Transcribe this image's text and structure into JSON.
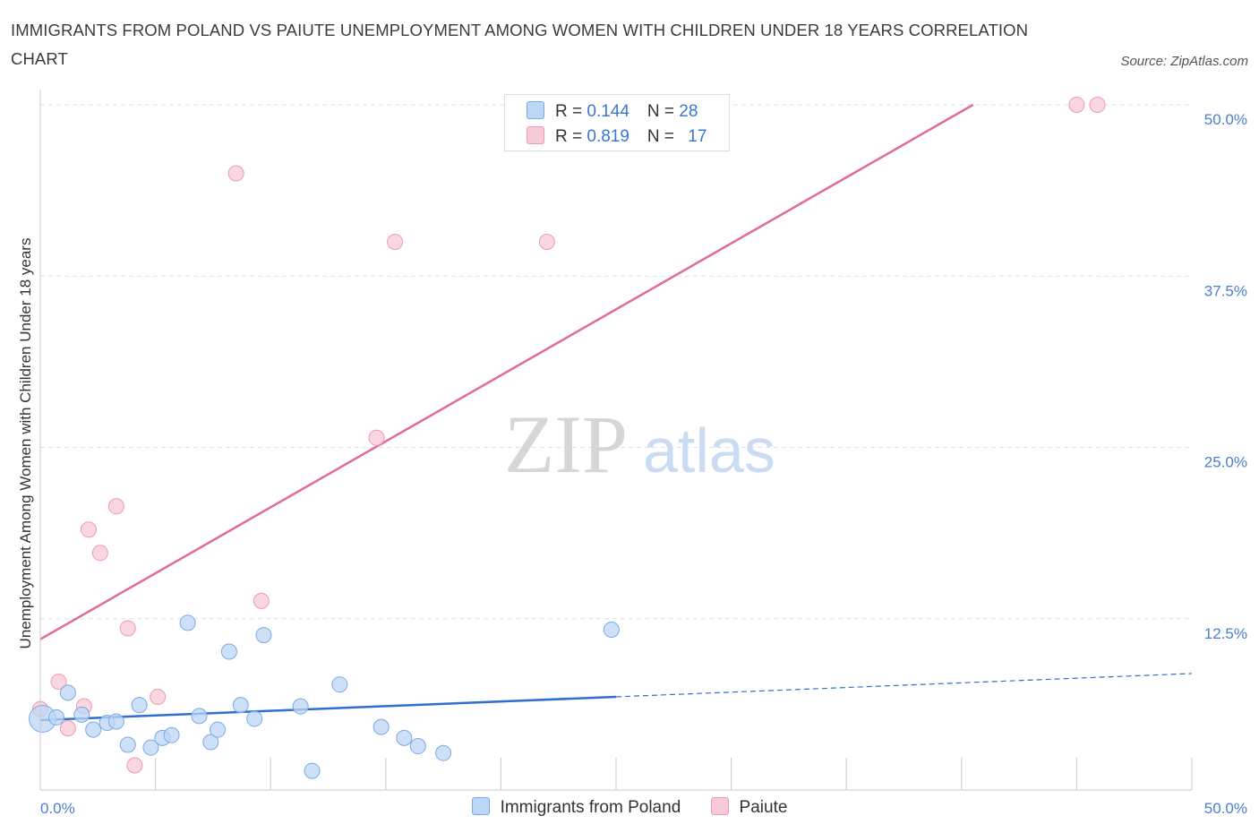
{
  "title": "IMMIGRANTS FROM POLAND VS PAIUTE UNEMPLOYMENT AMONG WOMEN WITH CHILDREN UNDER 18 YEARS CORRELATION CHART",
  "source": "Source: ZipAtlas.com",
  "watermark": {
    "zip": "ZIP",
    "atlas": "atlas"
  },
  "colors": {
    "poland_fill": "#bcd6f5",
    "poland_stroke": "#7aaae6",
    "poland_line": "#2f6fcf",
    "paiute_fill": "#f8c9d6",
    "paiute_stroke": "#ec9ab2",
    "paiute_line": "#e06b93",
    "grid": "#dde0e6",
    "tick_text": "#4a7fcf"
  },
  "legend": {
    "poland": {
      "r_label": "R = ",
      "r_value": "0.144",
      "n_label": "N = ",
      "n_value": "28"
    },
    "paiute": {
      "r_label": "R = ",
      "r_value": "0.819",
      "n_label": "N = ",
      "n_value": "17"
    }
  },
  "chart_data": {
    "type": "scatter",
    "title": "IMMIGRANTS FROM POLAND VS PAIUTE UNEMPLOYMENT AMONG WOMEN WITH CHILDREN UNDER 18 YEARS CORRELATION CHART",
    "xlabel": "",
    "ylabel": "Unemployment Among Women with Children Under 18 years",
    "xlim": [
      0,
      50
    ],
    "ylim": [
      0,
      50
    ],
    "x_tick_labels": [
      "0.0%",
      "50.0%"
    ],
    "y_ticks": [
      12.5,
      25.0,
      37.5,
      50.0
    ],
    "y_tick_labels": [
      "12.5%",
      "25.0%",
      "37.5%",
      "50.0%"
    ],
    "grid": true,
    "legend_position": "top-center",
    "series": [
      {
        "name": "Immigrants from Poland",
        "points": [
          [
            0.1,
            5.2
          ],
          [
            0.7,
            5.3
          ],
          [
            1.2,
            7.1
          ],
          [
            1.8,
            5.5
          ],
          [
            2.3,
            4.4
          ],
          [
            2.9,
            4.9
          ],
          [
            3.3,
            5.0
          ],
          [
            3.8,
            3.3
          ],
          [
            4.3,
            6.2
          ],
          [
            4.8,
            3.1
          ],
          [
            5.3,
            3.8
          ],
          [
            5.7,
            4.0
          ],
          [
            6.4,
            12.2
          ],
          [
            6.9,
            5.4
          ],
          [
            7.4,
            3.5
          ],
          [
            7.7,
            4.4
          ],
          [
            8.2,
            10.1
          ],
          [
            8.7,
            6.2
          ],
          [
            9.3,
            5.2
          ],
          [
            9.7,
            11.3
          ],
          [
            11.3,
            6.1
          ],
          [
            11.8,
            1.4
          ],
          [
            13.0,
            7.7
          ],
          [
            14.8,
            4.6
          ],
          [
            15.8,
            3.8
          ],
          [
            16.4,
            3.2
          ],
          [
            17.5,
            2.7
          ],
          [
            24.8,
            11.7
          ]
        ],
        "trend": {
          "x": [
            0,
            25,
            50
          ],
          "y": [
            5.1,
            6.8,
            8.5
          ],
          "solid_until": 25
        }
      },
      {
        "name": "Paiute",
        "points": [
          [
            0.0,
            5.9
          ],
          [
            0.8,
            7.9
          ],
          [
            1.2,
            4.5
          ],
          [
            1.9,
            6.1
          ],
          [
            2.1,
            19.0
          ],
          [
            2.6,
            17.3
          ],
          [
            3.3,
            20.7
          ],
          [
            3.8,
            11.8
          ],
          [
            4.1,
            1.8
          ],
          [
            5.1,
            6.8
          ],
          [
            8.5,
            45.0
          ],
          [
            9.6,
            13.8
          ],
          [
            14.6,
            25.7
          ],
          [
            15.4,
            40.0
          ],
          [
            22.0,
            40.0
          ],
          [
            45.0,
            50.0
          ],
          [
            45.9,
            50.0
          ]
        ],
        "trend": {
          "x": [
            0,
            40.5
          ],
          "y": [
            11.0,
            50.0
          ]
        }
      }
    ]
  },
  "bottom_legend": [
    "Immigrants from Poland",
    "Paiute"
  ]
}
